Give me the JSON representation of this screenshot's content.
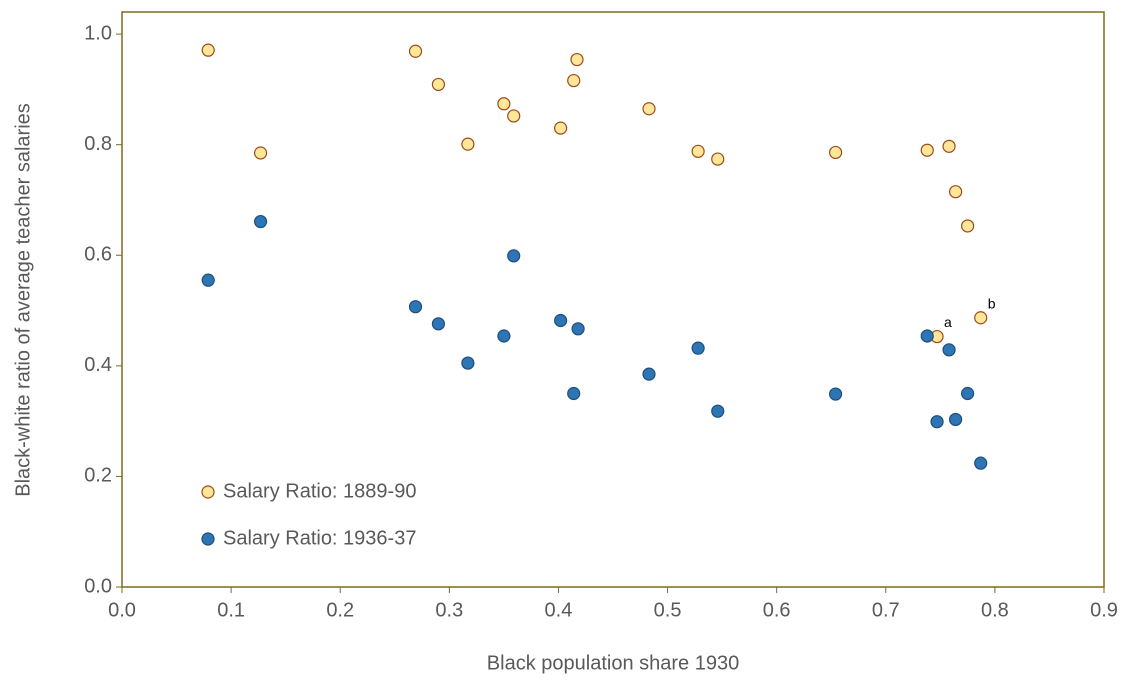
{
  "chart_data": {
    "type": "scatter",
    "xlabel": "Black population share 1930",
    "ylabel": "Black-white ratio of average teacher salaries",
    "xlim": [
      0,
      0.9
    ],
    "ylim": [
      0,
      1.04
    ],
    "xticks": [
      {
        "value": 0,
        "label": "0.0"
      },
      0.1,
      0.2,
      0.3,
      0.4,
      0.5,
      0.6,
      0.7,
      0.8,
      0.9
    ],
    "yticks": [
      {
        "value": 0,
        "label": "0.0"
      },
      0.2,
      0.4,
      0.6,
      0.8,
      {
        "value": 1,
        "label": "1.0"
      }
    ],
    "legend": "lower left",
    "series": [
      {
        "name": "Salary Ratio: 1889-90",
        "color": "#ffe699",
        "edgecolor": "#9c4a1a",
        "x": [
          0.079,
          0.127,
          0.269,
          0.29,
          0.317,
          0.35,
          0.359,
          0.402,
          0.414,
          0.417,
          0.483,
          0.528,
          0.546,
          0.654,
          0.738,
          0.758,
          0.764,
          0.775,
          0.747,
          0.787
        ],
        "values": [
          0.971,
          0.785,
          0.969,
          0.909,
          0.801,
          0.874,
          0.852,
          0.83,
          0.916,
          0.954,
          0.865,
          0.788,
          0.774,
          0.786,
          0.79,
          0.797,
          0.715,
          0.653,
          0.453,
          0.487
        ]
      },
      {
        "name": "Salary Ratio: 1936-37",
        "color": "#2e75b6",
        "edgecolor": "#1f4e79",
        "x": [
          0.079,
          0.127,
          0.269,
          0.29,
          0.317,
          0.35,
          0.359,
          0.402,
          0.418,
          0.414,
          0.483,
          0.528,
          0.546,
          0.654,
          0.738,
          0.758,
          0.747,
          0.764,
          0.775,
          0.787
        ],
        "values": [
          0.555,
          0.661,
          0.507,
          0.476,
          0.405,
          0.454,
          0.599,
          0.482,
          0.467,
          0.35,
          0.385,
          0.432,
          0.318,
          0.349,
          0.454,
          0.429,
          0.299,
          0.303,
          0.35,
          0.224
        ]
      }
    ],
    "annotations": [
      {
        "text": "a",
        "x": 0.747,
        "y": 0.453
      },
      {
        "text": "b",
        "x": 0.787,
        "y": 0.487
      }
    ]
  }
}
